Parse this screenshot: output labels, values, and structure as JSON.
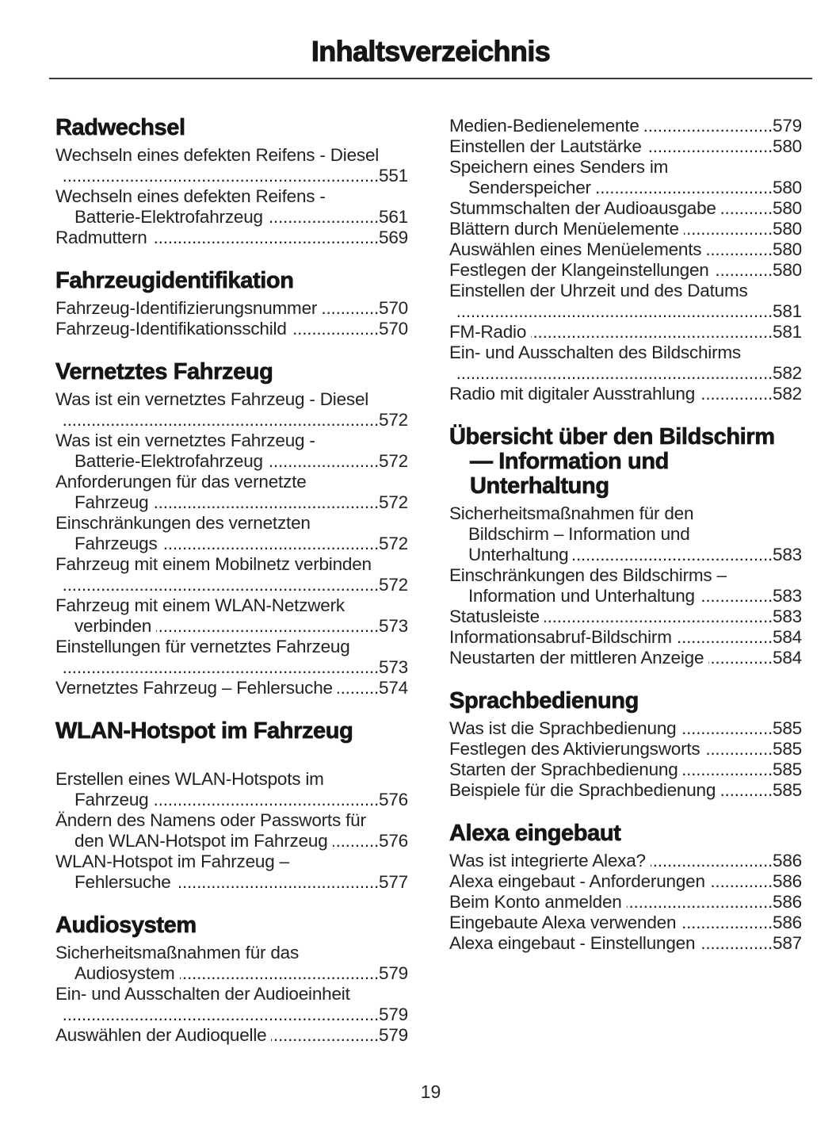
{
  "page": {
    "title": "Inhaltsverzeichnis",
    "number": "19"
  },
  "columns": [
    {
      "sections": [
        {
          "heading": [
            "Radwechsel"
          ],
          "entries": [
            {
              "lines": [
                "Wechseln eines defekten Reifens - Diesel"
              ],
              "end": "",
              "page": "551"
            },
            {
              "lines": [
                "Wechseln eines defekten Reifens -"
              ],
              "end": "Batterie-Elektrofahrzeug",
              "page": "561"
            },
            {
              "lines": [],
              "end": "Radmuttern",
              "page": "569"
            }
          ]
        },
        {
          "heading": [
            "Fahrzeugidentifikation"
          ],
          "entries": [
            {
              "lines": [],
              "end": "Fahrzeug-Identifizierungsnummer",
              "page": "570"
            },
            {
              "lines": [],
              "end": "Fahrzeug-Identifikationsschild",
              "page": "570"
            }
          ]
        },
        {
          "heading": [
            "Vernetztes Fahrzeug"
          ],
          "entries": [
            {
              "lines": [
                "Was ist ein vernetztes Fahrzeug - Diesel"
              ],
              "end": "",
              "page": "572"
            },
            {
              "lines": [
                "Was ist ein vernetztes Fahrzeug -"
              ],
              "end": "Batterie-Elektrofahrzeug",
              "page": "572"
            },
            {
              "lines": [
                "Anforderungen für das vernetzte"
              ],
              "end": "Fahrzeug",
              "page": "572"
            },
            {
              "lines": [
                "Einschränkungen des vernetzten"
              ],
              "end": "Fahrzeugs",
              "page": "572"
            },
            {
              "lines": [
                "Fahrzeug mit einem Mobilnetz verbinden"
              ],
              "end": "",
              "page": "572"
            },
            {
              "lines": [
                "Fahrzeug mit einem WLAN-Netzwerk"
              ],
              "end": "verbinden",
              "page": "573"
            },
            {
              "lines": [
                "Einstellungen für vernetztes Fahrzeug"
              ],
              "end": "",
              "page": "573"
            },
            {
              "lines": [],
              "end": "Vernetztes Fahrzeug – Fehlersuche",
              "page": "574"
            }
          ]
        },
        {
          "heading": [
            "WLAN-Hotspot im Fahrzeug"
          ],
          "gap_after_heading": true,
          "entries": [
            {
              "lines": [
                "Erstellen eines WLAN-Hotspots im"
              ],
              "end": "Fahrzeug",
              "page": "576"
            },
            {
              "lines": [
                "Ändern des Namens oder Passworts für"
              ],
              "end": "den WLAN-Hotspot im Fahrzeug",
              "page": "576"
            },
            {
              "lines": [
                "WLAN-Hotspot im Fahrzeug –"
              ],
              "end": "Fehlersuche",
              "page": "577"
            }
          ]
        },
        {
          "heading": [
            "Audiosystem"
          ],
          "entries": [
            {
              "lines": [
                "Sicherheitsmaßnahmen für das"
              ],
              "end": "Audiosystem",
              "page": "579"
            },
            {
              "lines": [
                "Ein- und Ausschalten der Audioeinheit"
              ],
              "end": "",
              "page": "579"
            },
            {
              "lines": [],
              "end": "Auswählen der Audioquelle",
              "page": "579"
            }
          ]
        }
      ]
    },
    {
      "sections": [
        {
          "heading": [],
          "entries": [
            {
              "lines": [],
              "end": "Medien-Bedienelemente",
              "page": "579"
            },
            {
              "lines": [],
              "end": "Einstellen der Lautstärke",
              "page": "580"
            },
            {
              "lines": [
                "Speichern eines Senders im"
              ],
              "end": "Senderspeicher",
              "page": "580"
            },
            {
              "lines": [],
              "end": "Stummschalten der Audioausgabe",
              "page": "580"
            },
            {
              "lines": [],
              "end": "Blättern durch Menüelemente",
              "page": "580"
            },
            {
              "lines": [],
              "end": "Auswählen eines Menüelements",
              "page": "580"
            },
            {
              "lines": [],
              "end": "Festlegen der Klangeinstellungen",
              "page": "580"
            },
            {
              "lines": [
                "Einstellen der Uhrzeit und des Datums"
              ],
              "end": "",
              "page": "581"
            },
            {
              "lines": [],
              "end": "FM-Radio",
              "page": "581"
            },
            {
              "lines": [
                "Ein- und Ausschalten des Bildschirms"
              ],
              "end": "",
              "page": "582"
            },
            {
              "lines": [],
              "end": "Radio mit digitaler Ausstrahlung",
              "page": "582"
            }
          ]
        },
        {
          "heading": [
            "Übersicht über den Bildschirm",
            "— Information und",
            "Unterhaltung"
          ],
          "entries": [
            {
              "lines": [
                "Sicherheitsmaßnahmen für den",
                "Bildschirm – Information und"
              ],
              "end": "Unterhaltung",
              "page": "583"
            },
            {
              "lines": [
                "Einschränkungen des Bildschirms –"
              ],
              "end": "Information und Unterhaltung",
              "page": "583"
            },
            {
              "lines": [],
              "end": "Statusleiste",
              "page": "583"
            },
            {
              "lines": [],
              "end": "Informationsabruf-Bildschirm",
              "page": "584"
            },
            {
              "lines": [],
              "end": "Neustarten der mittleren Anzeige",
              "page": "584"
            }
          ]
        },
        {
          "heading": [
            "Sprachbedienung"
          ],
          "entries": [
            {
              "lines": [],
              "end": "Was ist die Sprachbedienung",
              "page": "585"
            },
            {
              "lines": [],
              "end": "Festlegen des Aktivierungsworts",
              "page": "585"
            },
            {
              "lines": [],
              "end": "Starten der Sprachbedienung",
              "page": "585"
            },
            {
              "lines": [],
              "end": "Beispiele für die Sprachbedienung",
              "page": "585"
            }
          ]
        },
        {
          "heading": [
            "Alexa eingebaut"
          ],
          "entries": [
            {
              "lines": [],
              "end": "Was ist integrierte Alexa?",
              "page": "586"
            },
            {
              "lines": [],
              "end": "Alexa eingebaut - Anforderungen",
              "page": "586"
            },
            {
              "lines": [],
              "end": "Beim Konto anmelden",
              "page": "586"
            },
            {
              "lines": [],
              "end": "Eingebaute Alexa verwenden",
              "page": "586"
            },
            {
              "lines": [],
              "end": "Alexa eingebaut - Einstellungen",
              "page": "587"
            }
          ]
        }
      ]
    }
  ]
}
